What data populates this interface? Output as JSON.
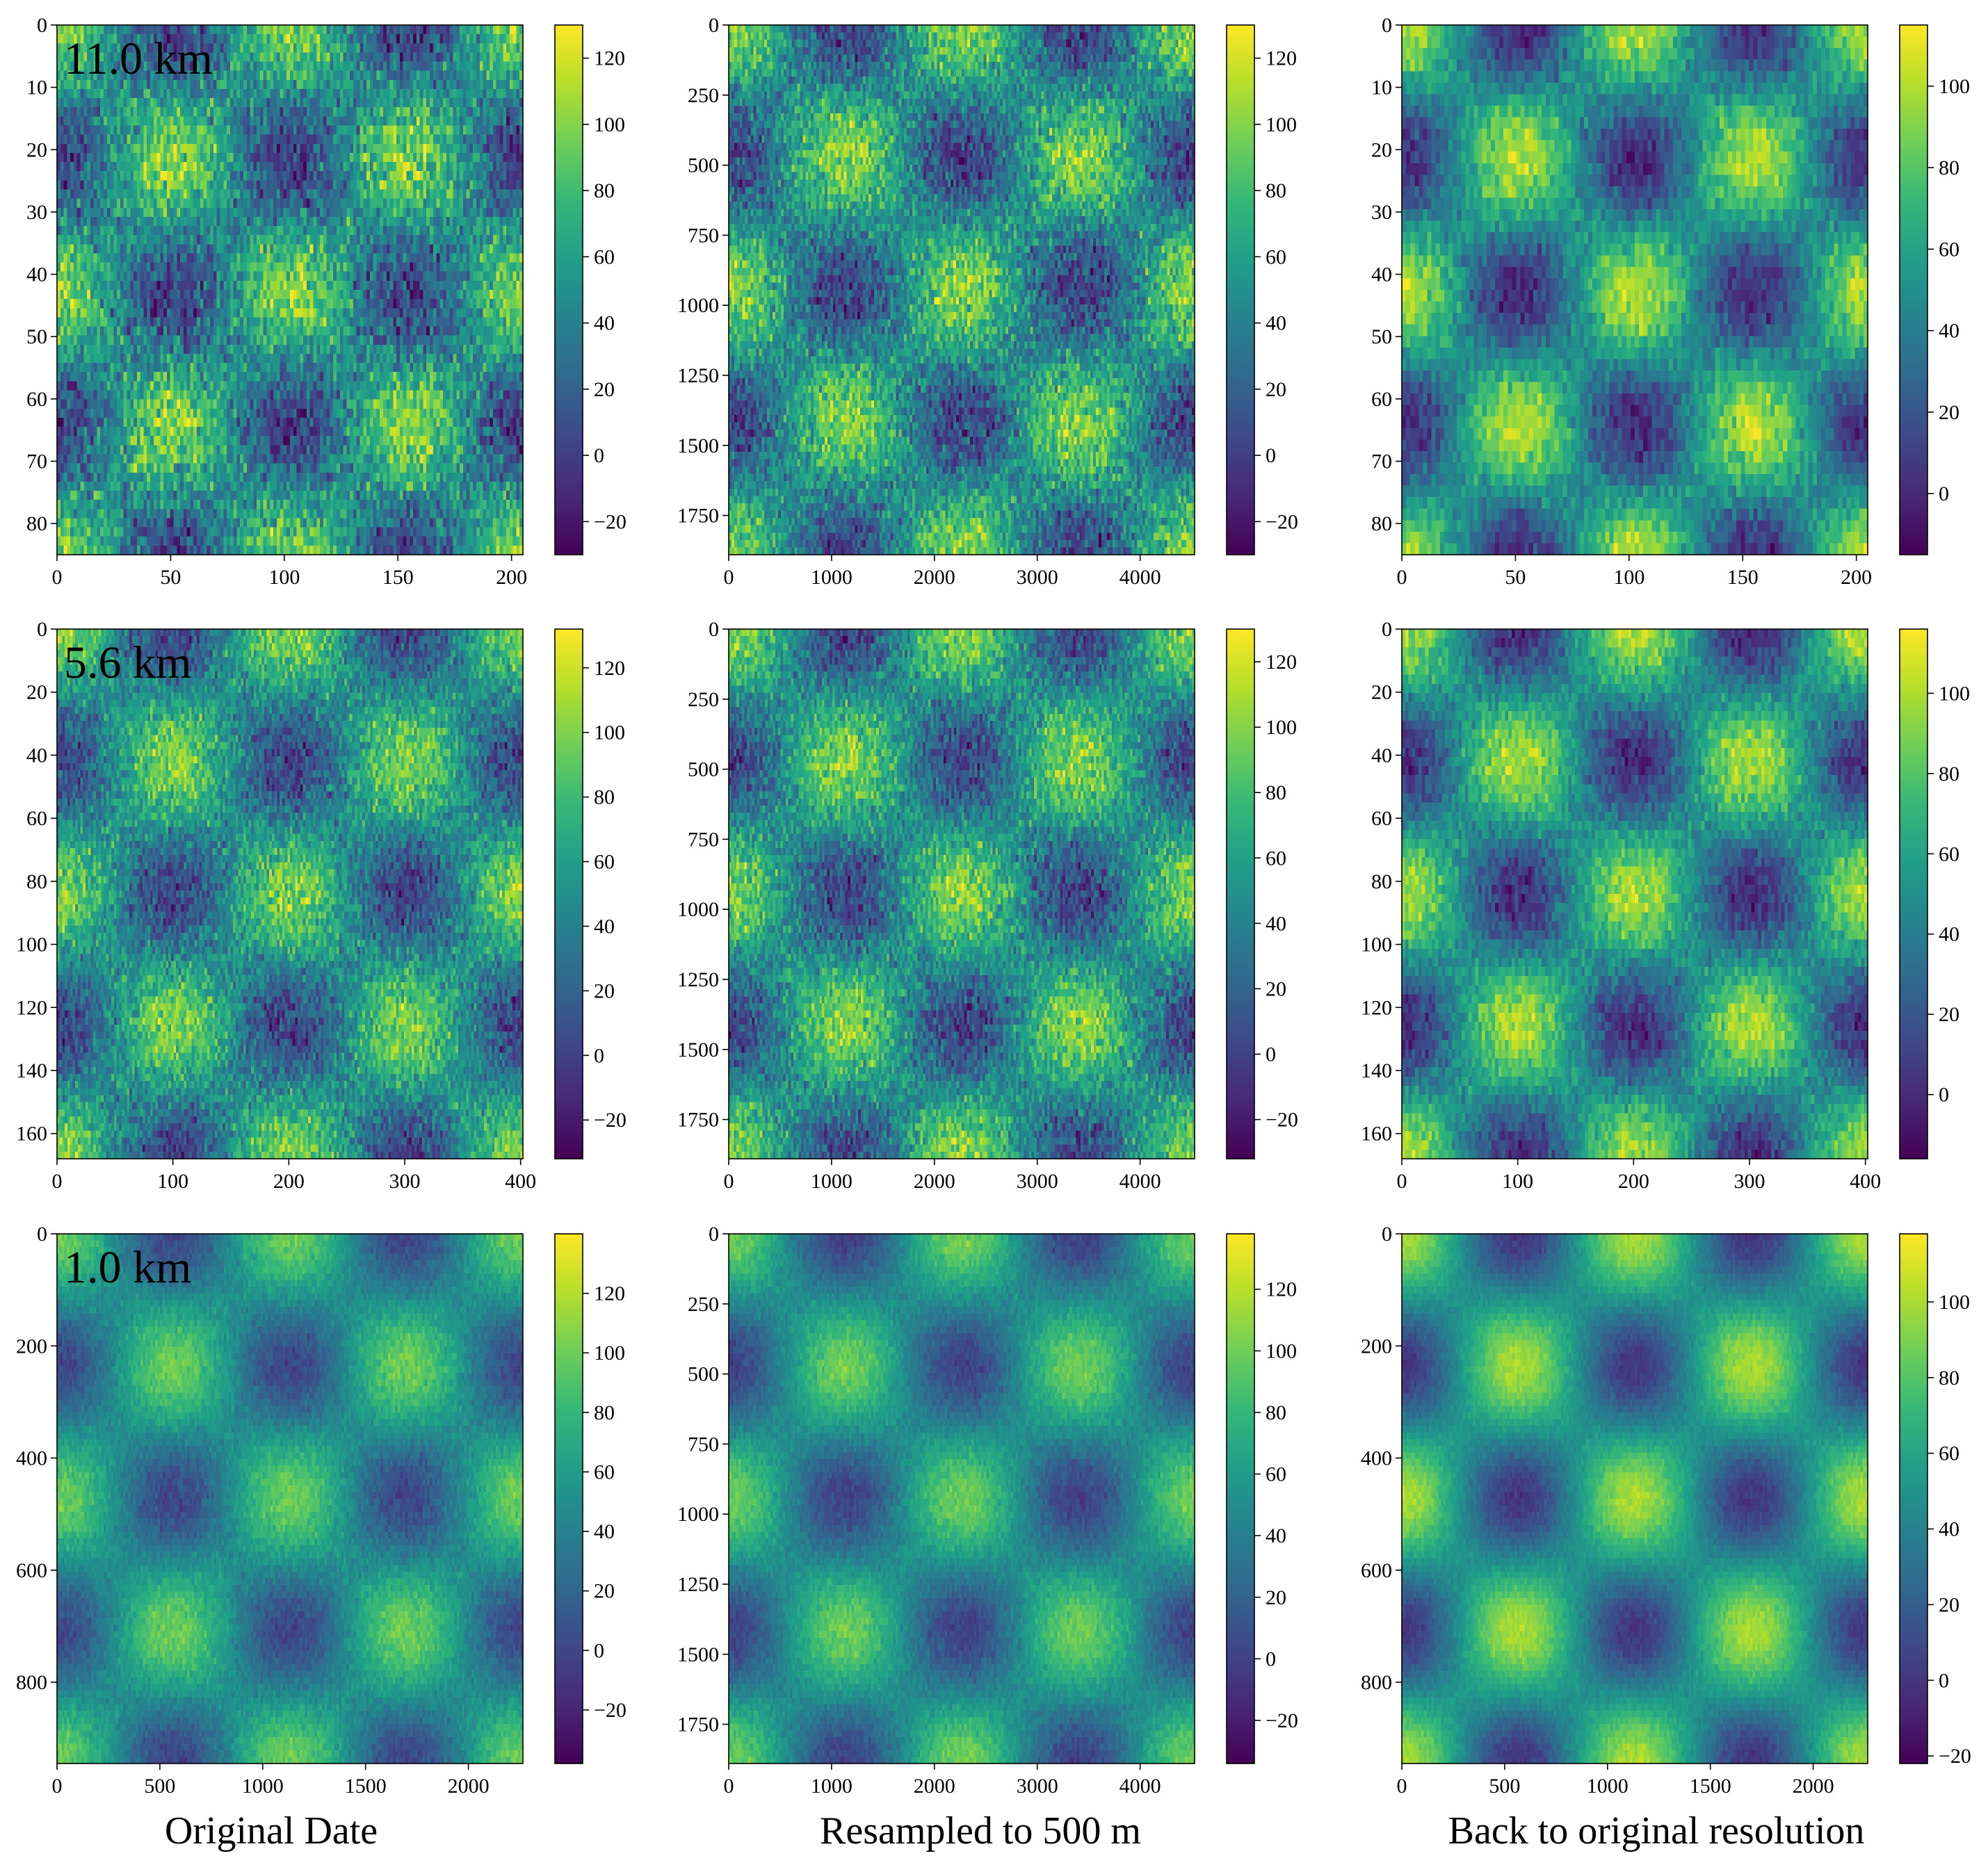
{
  "column_captions": [
    "Original Date",
    "Resampled to 500 m",
    "Back to original resolution"
  ],
  "colormap": [
    "#440154",
    "#482878",
    "#3e4989",
    "#31688e",
    "#26828e",
    "#1f9e89",
    "#35b779",
    "#6ece58",
    "#b5de2b",
    "#fde725"
  ],
  "chart_data": [
    {
      "type": "heatmap",
      "row": 0,
      "col": 0,
      "resolution_label": "11.0 km",
      "xlim": [
        0,
        205
      ],
      "ylim": [
        85,
        0
      ],
      "xticks": [
        0,
        50,
        100,
        150,
        200
      ],
      "yticks": [
        0,
        10,
        20,
        30,
        40,
        50,
        60,
        70,
        80
      ],
      "colorbar": {
        "range": [
          -30,
          130
        ],
        "ticks": [
          -20,
          0,
          20,
          40,
          60,
          80,
          100,
          120
        ]
      },
      "pattern": {
        "amplitude": 50,
        "offset": 50,
        "noise": 26,
        "period_x": 103,
        "period_y": 43,
        "pixels": [
          140,
          58
        ]
      }
    },
    {
      "type": "heatmap",
      "row": 0,
      "col": 1,
      "resolution_label": "",
      "xlim": [
        0,
        4530
      ],
      "ylim": [
        1890,
        0
      ],
      "xticks": [
        0,
        1000,
        2000,
        3000,
        4000
      ],
      "yticks": [
        0,
        250,
        500,
        750,
        1000,
        1250,
        1500,
        1750
      ],
      "colorbar": {
        "range": [
          -30,
          130
        ],
        "ticks": [
          -20,
          0,
          20,
          40,
          60,
          80,
          100,
          120
        ]
      },
      "pattern": {
        "amplitude": 50,
        "offset": 50,
        "noise": 24,
        "period_x": 2270,
        "period_y": 945,
        "pixels": [
          170,
          72
        ]
      }
    },
    {
      "type": "heatmap",
      "row": 0,
      "col": 2,
      "resolution_label": "",
      "xlim": [
        0,
        205
      ],
      "ylim": [
        85,
        0
      ],
      "xticks": [
        0,
        50,
        100,
        150,
        200
      ],
      "yticks": [
        0,
        10,
        20,
        30,
        40,
        50,
        60,
        70,
        80
      ],
      "colorbar": {
        "range": [
          -15,
          115
        ],
        "ticks": [
          0,
          20,
          40,
          60,
          80,
          100
        ]
      },
      "pattern": {
        "amplitude": 50,
        "offset": 50,
        "noise": 12,
        "period_x": 103,
        "period_y": 43,
        "pixels": [
          110,
          46
        ]
      }
    },
    {
      "type": "heatmap",
      "row": 1,
      "col": 0,
      "resolution_label": "5.6 km",
      "xlim": [
        0,
        402
      ],
      "ylim": [
        168,
        0
      ],
      "xticks": [
        0,
        100,
        200,
        300,
        400
      ],
      "yticks": [
        0,
        20,
        40,
        60,
        80,
        100,
        120,
        140,
        160
      ],
      "colorbar": {
        "range": [
          -32,
          132
        ],
        "ticks": [
          -20,
          0,
          20,
          40,
          60,
          80,
          100,
          120
        ]
      },
      "pattern": {
        "amplitude": 50,
        "offset": 50,
        "noise": 22,
        "period_x": 201,
        "period_y": 84,
        "pixels": [
          180,
          75
        ]
      }
    },
    {
      "type": "heatmap",
      "row": 1,
      "col": 1,
      "resolution_label": "",
      "xlim": [
        0,
        4530
      ],
      "ylim": [
        1890,
        0
      ],
      "xticks": [
        0,
        1000,
        2000,
        3000,
        4000
      ],
      "yticks": [
        0,
        250,
        500,
        750,
        1000,
        1250,
        1500,
        1750
      ],
      "colorbar": {
        "range": [
          -32,
          130
        ],
        "ticks": [
          -20,
          0,
          20,
          40,
          60,
          80,
          100,
          120
        ]
      },
      "pattern": {
        "amplitude": 50,
        "offset": 50,
        "noise": 22,
        "period_x": 2270,
        "period_y": 945,
        "pixels": [
          180,
          75
        ]
      }
    },
    {
      "type": "heatmap",
      "row": 1,
      "col": 2,
      "resolution_label": "",
      "xlim": [
        0,
        402
      ],
      "ylim": [
        168,
        0
      ],
      "xticks": [
        0,
        100,
        200,
        300,
        400
      ],
      "yticks": [
        0,
        20,
        40,
        60,
        80,
        100,
        120,
        140,
        160
      ],
      "colorbar": {
        "range": [
          -16,
          116
        ],
        "ticks": [
          0,
          20,
          40,
          60,
          80,
          100
        ]
      },
      "pattern": {
        "amplitude": 50,
        "offset": 50,
        "noise": 12,
        "period_x": 201,
        "period_y": 84,
        "pixels": [
          140,
          58
        ]
      }
    },
    {
      "type": "heatmap",
      "row": 2,
      "col": 0,
      "resolution_label": "1.0 km",
      "xlim": [
        0,
        2265
      ],
      "ylim": [
        945,
        0
      ],
      "xticks": [
        0,
        500,
        1000,
        1500,
        2000
      ],
      "yticks": [
        0,
        200,
        400,
        600,
        800
      ],
      "colorbar": {
        "range": [
          -38,
          140
        ],
        "ticks": [
          -20,
          0,
          20,
          40,
          60,
          80,
          100,
          120
        ]
      },
      "pattern": {
        "amplitude": 50,
        "offset": 50,
        "noise": 9,
        "period_x": 1133,
        "period_y": 472,
        "pixels": [
          190,
          80
        ]
      }
    },
    {
      "type": "heatmap",
      "row": 2,
      "col": 1,
      "resolution_label": "",
      "xlim": [
        0,
        4530
      ],
      "ylim": [
        1890,
        0
      ],
      "xticks": [
        0,
        1000,
        2000,
        3000,
        4000
      ],
      "yticks": [
        0,
        250,
        500,
        750,
        1000,
        1250,
        1500,
        1750
      ],
      "colorbar": {
        "range": [
          -34,
          138
        ],
        "ticks": [
          -20,
          0,
          20,
          40,
          60,
          80,
          100,
          120
        ]
      },
      "pattern": {
        "amplitude": 50,
        "offset": 50,
        "noise": 8,
        "period_x": 2270,
        "period_y": 945,
        "pixels": [
          190,
          80
        ]
      }
    },
    {
      "type": "heatmap",
      "row": 2,
      "col": 2,
      "resolution_label": "",
      "xlim": [
        0,
        2265
      ],
      "ylim": [
        945,
        0
      ],
      "xticks": [
        0,
        500,
        1000,
        1500,
        2000
      ],
      "yticks": [
        0,
        200,
        400,
        600,
        800
      ],
      "colorbar": {
        "range": [
          -22,
          118
        ],
        "ticks": [
          -20,
          0,
          20,
          40,
          60,
          80,
          100
        ]
      },
      "pattern": {
        "amplitude": 50,
        "offset": 50,
        "noise": 5,
        "period_x": 1133,
        "period_y": 472,
        "pixels": [
          190,
          80
        ]
      }
    }
  ]
}
